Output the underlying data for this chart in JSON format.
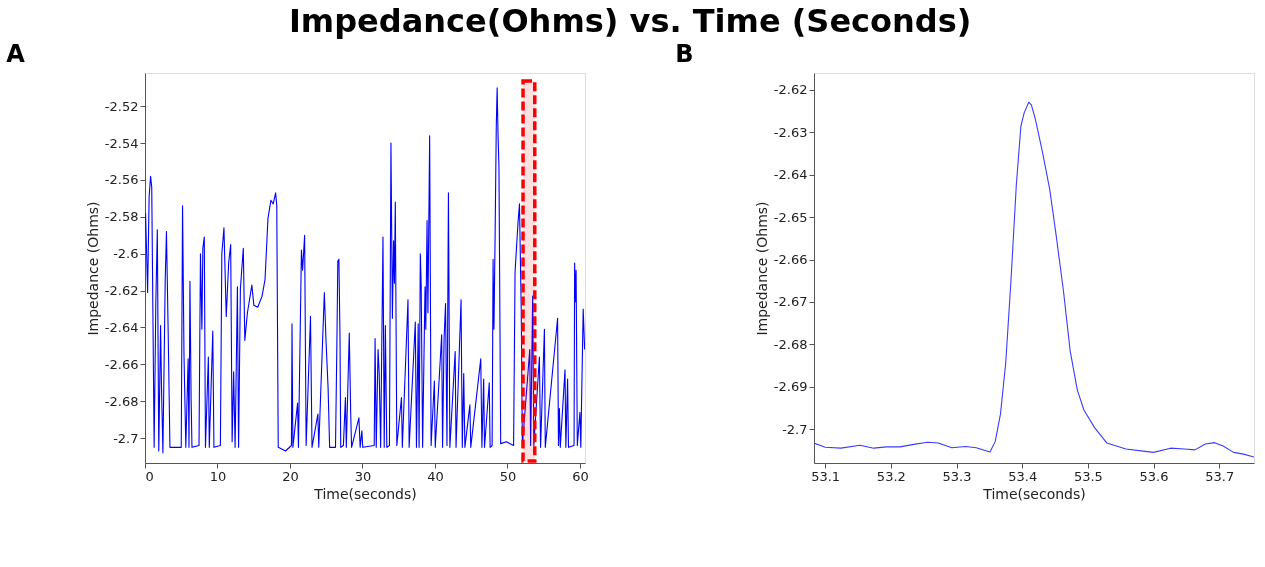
{
  "chart_data": [
    {
      "type": "line",
      "title": "Impedance(Ohms) vs. Time (Seconds)",
      "annotations": [
        "A"
      ],
      "xlabel": "Time(seconds)",
      "ylabel": "Impedance (Ohms)",
      "xlim": [
        0,
        60.7
      ],
      "ylim": [
        -2.7135,
        -2.502
      ],
      "xticks": [
        0,
        10,
        20,
        30,
        40,
        50,
        60
      ],
      "yticks": [
        -2.7,
        -2.68,
        -2.66,
        -2.64,
        -2.62,
        -2.6,
        -2.58,
        -2.56,
        -2.54,
        -2.52
      ],
      "bands": [
        {
          "axis": "x",
          "from": 52.15,
          "to": 53.77,
          "color": "#ff0000"
        }
      ],
      "series": [
        {
          "color": "#0000ff",
          "x": [
            0.08,
            0.36,
            0.57,
            0.77,
            0.93,
            1.26,
            1.5,
            1.7,
            1.9,
            2.15,
            2.27,
            2.47,
            2.79,
            2.96,
            3.2,
            3.44,
            5.0,
            5.18,
            5.38,
            5.63,
            5.95,
            6.07,
            6.2,
            6.36,
            6.48,
            7.45,
            7.65,
            7.85,
            7.98,
            8.18,
            8.34,
            8.74,
            8.87,
            9.35,
            9.51,
            10.4,
            10.6,
            10.89,
            11.21,
            11.54,
            11.82,
            12.02,
            12.23,
            12.43,
            12.75,
            12.91,
            13.16,
            13.56,
            13.77,
            14.13,
            14.74,
            15.02,
            15.55,
            16.15,
            16.56,
            16.96,
            17.37,
            17.69,
            18.02,
            18.18,
            18.38,
            19.39,
            20.2,
            20.28,
            20.4,
            21.05,
            21.17,
            21.58,
            21.74,
            22.02,
            22.23,
            22.83,
            23.04,
            23.85,
            23.97,
            24.74,
            24.98,
            25.26,
            25.47,
            26.28,
            26.48,
            26.6,
            26.75,
            26.9,
            27.0,
            27.37,
            27.65,
            27.77,
            28.18,
            28.38,
            28.5,
            29.51,
            29.68,
            29.92,
            30.04,
            31.62,
            31.74,
            31.9,
            32.15,
            32.31,
            32.51,
            32.83,
            33.0,
            33.16,
            33.36,
            33.72,
            33.93,
            34.13,
            34.29,
            34.41,
            34.53,
            34.74,
            35.38,
            35.5,
            36.28,
            36.44,
            37.29,
            37.45,
            37.69,
            37.81,
            37.98,
            38.1,
            38.3,
            38.63,
            38.74,
            38.91,
            39.03,
            39.27,
            39.47,
            39.92,
            40.04,
            40.93,
            41.05,
            41.26,
            41.46,
            41.66,
            41.86,
            42.06,
            42.79,
            42.91,
            43.6,
            43.77,
            43.97,
            44.13,
            44.82,
            44.94,
            46.32,
            46.48,
            46.72,
            46.84,
            47.49,
            47.61,
            47.89,
            48.02,
            48.14,
            48.3,
            48.46,
            48.58,
            48.7,
            48.83,
            49.07,
            49.84,
            50.85,
            51.05,
            51.46,
            51.66,
            51.9,
            52.06,
            53.08,
            53.2,
            53.48,
            53.64,
            54.41,
            54.57,
            55.1,
            55.22,
            56.92,
            57.04,
            57.17,
            57.29,
            57.94,
            58.06,
            58.3,
            58.42,
            59.19,
            59.27,
            59.39,
            59.47,
            59.64,
            60.0,
            60.12,
            60.45,
            60.65
          ],
          "values": [
            -2.578,
            -2.621,
            -2.569,
            -2.558,
            -2.564,
            -2.705,
            -2.625,
            -2.587,
            -2.707,
            -2.639,
            -2.671,
            -2.708,
            -2.614,
            -2.588,
            -2.643,
            -2.705,
            -2.705,
            -2.574,
            -2.655,
            -2.705,
            -2.657,
            -2.705,
            -2.615,
            -2.678,
            -2.705,
            -2.704,
            -2.6,
            -2.641,
            -2.597,
            -2.591,
            -2.705,
            -2.656,
            -2.705,
            -2.642,
            -2.705,
            -2.704,
            -2.6,
            -2.586,
            -2.634,
            -2.605,
            -2.595,
            -2.702,
            -2.664,
            -2.705,
            -2.618,
            -2.705,
            -2.619,
            -2.597,
            -2.647,
            -2.632,
            -2.617,
            -2.628,
            -2.629,
            -2.623,
            -2.614,
            -2.581,
            -2.571,
            -2.573,
            -2.567,
            -2.574,
            -2.705,
            -2.707,
            -2.704,
            -2.638,
            -2.705,
            -2.681,
            -2.705,
            -2.598,
            -2.609,
            -2.59,
            -2.704,
            -2.634,
            -2.705,
            -2.687,
            -2.705,
            -2.621,
            -2.648,
            -2.673,
            -2.705,
            -2.705,
            -2.646,
            -2.604,
            -2.603,
            -2.645,
            -2.705,
            -2.704,
            -2.678,
            -2.705,
            -2.643,
            -2.687,
            -2.705,
            -2.689,
            -2.705,
            -2.696,
            -2.705,
            -2.704,
            -2.646,
            -2.705,
            -2.652,
            -2.665,
            -2.705,
            -2.591,
            -2.705,
            -2.639,
            -2.705,
            -2.704,
            -2.54,
            -2.635,
            -2.593,
            -2.616,
            -2.572,
            -2.704,
            -2.678,
            -2.705,
            -2.625,
            -2.705,
            -2.637,
            -2.705,
            -2.638,
            -2.705,
            -2.6,
            -2.617,
            -2.705,
            -2.618,
            -2.641,
            -2.582,
            -2.632,
            -2.536,
            -2.704,
            -2.669,
            -2.705,
            -2.644,
            -2.705,
            -2.646,
            -2.627,
            -2.704,
            -2.567,
            -2.705,
            -2.653,
            -2.705,
            -2.625,
            -2.705,
            -2.665,
            -2.705,
            -2.682,
            -2.705,
            -2.657,
            -2.705,
            -2.668,
            -2.705,
            -2.67,
            -2.705,
            -2.704,
            -2.603,
            -2.641,
            -2.59,
            -2.531,
            -2.51,
            -2.535,
            -2.553,
            -2.703,
            -2.702,
            -2.704,
            -2.61,
            -2.583,
            -2.573,
            -2.63,
            -2.704,
            -2.652,
            -2.704,
            -2.623,
            -2.704,
            -2.656,
            -2.705,
            -2.641,
            -2.705,
            -2.635,
            -2.704,
            -2.684,
            -2.705,
            -2.663,
            -2.705,
            -2.668,
            -2.705,
            -2.704,
            -2.605,
            -2.626,
            -2.609,
            -2.704,
            -2.686,
            -2.705,
            -2.63,
            -2.652
          ]
        }
      ]
    },
    {
      "type": "line",
      "annotations": [
        "B"
      ],
      "xlabel": "Time(seconds)",
      "ylabel": "Impedance (Ohms)",
      "xlim": [
        53.083,
        53.753
      ],
      "ylim": [
        -2.708,
        -2.616
      ],
      "xticks": [
        53.1,
        53.2,
        53.3,
        53.4,
        53.5,
        53.6,
        53.7
      ],
      "yticks": [
        -2.7,
        -2.69,
        -2.68,
        -2.67,
        -2.66,
        -2.65,
        -2.64,
        -2.63,
        -2.62
      ],
      "series": [
        {
          "color": "#3c3cff",
          "x": [
            53.083,
            53.1,
            53.124,
            53.153,
            53.174,
            53.193,
            53.214,
            53.235,
            53.256,
            53.272,
            53.293,
            53.314,
            53.33,
            53.351,
            53.359,
            53.367,
            53.375,
            53.383,
            53.391,
            53.398,
            53.403,
            53.41,
            53.414,
            53.42,
            53.431,
            53.442,
            53.452,
            53.463,
            53.473,
            53.484,
            53.494,
            53.51,
            53.529,
            53.558,
            53.584,
            53.6,
            53.626,
            53.647,
            53.663,
            53.679,
            53.693,
            53.706,
            53.722,
            53.737,
            53.753
          ],
          "values": [
            -2.7033,
            -2.7043,
            -2.7045,
            -2.7038,
            -2.7045,
            -2.7042,
            -2.7042,
            -2.7036,
            -2.7031,
            -2.7033,
            -2.7044,
            -2.7041,
            -2.7044,
            -2.7054,
            -2.7029,
            -2.6964,
            -2.6843,
            -2.6648,
            -2.6426,
            -2.6286,
            -2.6254,
            -2.6229,
            -2.6235,
            -2.6268,
            -2.6347,
            -2.6435,
            -2.6546,
            -2.6676,
            -2.6815,
            -2.6908,
            -2.6955,
            -2.6996,
            -2.7033,
            -2.7047,
            -2.7052,
            -2.7055,
            -2.7045,
            -2.7047,
            -2.7049,
            -2.7035,
            -2.7032,
            -2.704,
            -2.7055,
            -2.7059,
            -2.7066
          ]
        }
      ]
    }
  ]
}
